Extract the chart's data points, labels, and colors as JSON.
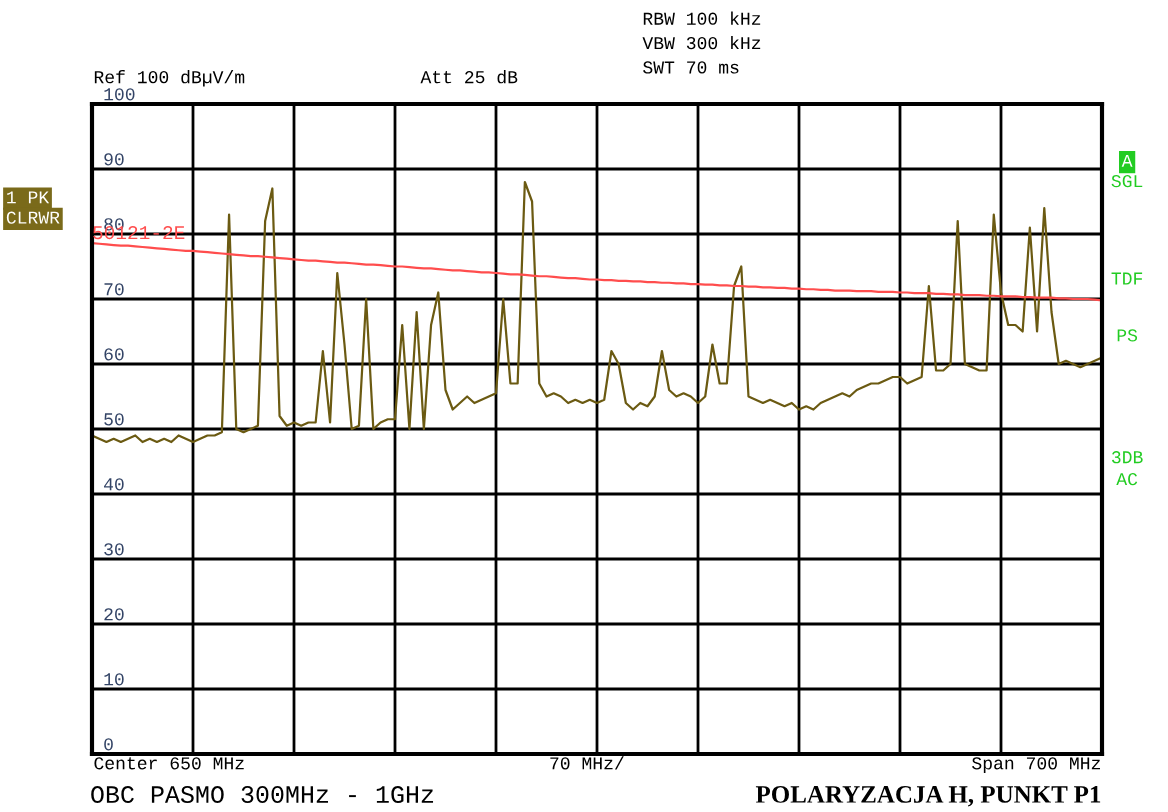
{
  "chart_data": {
    "type": "line",
    "categories": [
      null,
      null,
      null,
      null,
      null,
      null,
      null,
      null,
      null,
      null,
      null,
      null,
      null,
      null,
      null,
      null,
      null,
      null,
      null,
      null,
      null,
      null,
      null,
      null,
      null,
      null,
      null,
      null,
      null,
      null,
      null,
      null,
      null,
      null,
      null,
      null,
      null,
      null,
      null,
      null,
      null,
      null,
      null,
      null,
      null,
      null,
      null,
      null,
      null,
      null,
      null,
      null,
      null,
      null,
      null,
      null,
      null,
      null,
      null,
      null,
      null,
      null,
      null,
      null,
      null,
      null,
      null,
      null,
      null,
      null,
      null,
      null,
      null,
      null,
      null,
      null,
      null,
      null,
      null,
      null,
      null,
      null,
      null,
      null,
      null,
      null,
      null,
      null,
      null,
      null,
      null,
      null,
      null,
      null,
      null,
      null,
      null,
      null,
      null,
      null,
      null,
      null,
      null,
      null,
      null,
      null,
      null,
      null,
      null,
      null,
      null,
      null,
      null,
      null,
      null,
      null,
      null,
      null,
      null,
      null,
      null,
      null,
      null,
      null,
      null,
      null,
      null,
      null,
      null,
      null,
      null,
      null,
      null,
      null,
      null,
      null,
      null,
      null,
      null,
      null,
      null
    ],
    "ylim": [
      0,
      100
    ],
    "yticks": [
      0,
      10,
      20,
      30,
      40,
      50,
      60,
      70,
      80,
      90,
      100
    ],
    "grid": true,
    "tick_labels": "y",
    "series": [
      {
        "color": "#6b5a12",
        "values": [
          49,
          48.5,
          48,
          48.5,
          48,
          48.5,
          49,
          48,
          48.5,
          48,
          48.5,
          48,
          49,
          48.5,
          48,
          48.5,
          49,
          49,
          49.5,
          83,
          50,
          49.5,
          50,
          50.5,
          82,
          87,
          52,
          50.5,
          51,
          50.5,
          51,
          51,
          62,
          51,
          74,
          63,
          50,
          50.5,
          70,
          50,
          51,
          51.5,
          51.5,
          66,
          50,
          68,
          50,
          66,
          71,
          56,
          53,
          54,
          55,
          54,
          54.5,
          55,
          55.5,
          70,
          57,
          57,
          88,
          85,
          57,
          55,
          55.5,
          55,
          54,
          54.5,
          54,
          54.5,
          54,
          54.5,
          62,
          60,
          54,
          53,
          54,
          53.5,
          55,
          62,
          56,
          55,
          55.5,
          55,
          54,
          55,
          63,
          57,
          57,
          72,
          75,
          55,
          54.5,
          54,
          54.5,
          54,
          53.5,
          54,
          53,
          53.5,
          53,
          54,
          54.5,
          55,
          55.5,
          55,
          56,
          56.5,
          57,
          57,
          57.5,
          58,
          58,
          57,
          57.5,
          58,
          72,
          59,
          59,
          60,
          82,
          60,
          59.5,
          59,
          59,
          83,
          71,
          66,
          66,
          65,
          81,
          65,
          84,
          68,
          60,
          60.5,
          60,
          59.5,
          60,
          60.5,
          61
        ]
      },
      {
        "name": "50121-2E",
        "color": "#ff4d4d",
        "values": [
          78.6,
          78.5,
          78.4,
          78.3,
          78.2,
          78.2,
          78.1,
          78.0,
          77.9,
          77.8,
          77.7,
          77.6,
          77.5,
          77.4,
          77.4,
          77.3,
          77.2,
          77.1,
          77.0,
          76.9,
          76.8,
          76.7,
          76.6,
          76.6,
          76.5,
          76.4,
          76.3,
          76.2,
          76.1,
          76.0,
          75.9,
          75.9,
          75.8,
          75.7,
          75.6,
          75.6,
          75.5,
          75.4,
          75.3,
          75.3,
          75.2,
          75.1,
          75.0,
          75.0,
          74.9,
          74.8,
          74.7,
          74.7,
          74.6,
          74.5,
          74.4,
          74.4,
          74.3,
          74.2,
          74.1,
          74.1,
          74.0,
          73.9,
          73.8,
          73.8,
          73.7,
          73.6,
          73.5,
          73.5,
          73.4,
          73.3,
          73.2,
          73.2,
          73.1,
          73.0,
          73.0,
          72.9,
          72.9,
          72.8,
          72.8,
          72.7,
          72.7,
          72.6,
          72.6,
          72.5,
          72.5,
          72.4,
          72.4,
          72.3,
          72.3,
          72.2,
          72.2,
          72.1,
          72.1,
          72.0,
          72.0,
          71.9,
          71.9,
          71.8,
          71.8,
          71.7,
          71.7,
          71.6,
          71.6,
          71.5,
          71.5,
          71.4,
          71.4,
          71.3,
          71.3,
          71.3,
          71.2,
          71.2,
          71.2,
          71.1,
          71.1,
          71.1,
          71.0,
          71.0,
          70.9,
          70.9,
          70.9,
          70.8,
          70.8,
          70.7,
          70.7,
          70.6,
          70.6,
          70.6,
          70.5,
          70.5,
          70.4,
          70.4,
          70.4,
          70.3,
          70.3,
          70.2,
          70.2,
          70.2,
          70.1,
          70.1,
          70.0,
          70.0,
          70.0,
          69.9,
          69.8
        ]
      }
    ],
    "annotations": [
      "RBW 100 kHz",
      "VBW 300 kHz",
      "SWT 70 ms",
      "Ref 100 dBµV/m",
      "Att 25 dB",
      "1 PK",
      "CLRWR",
      "A",
      "SGL",
      "TDF",
      "PS",
      "3DB",
      "AC",
      "Center 650 MHz",
      "70 MHz/",
      "Span 700 MHz",
      "OBC PASMO 300MHz - 1GHz",
      "POLARYZACJA H, PUNKT P1"
    ]
  }
}
